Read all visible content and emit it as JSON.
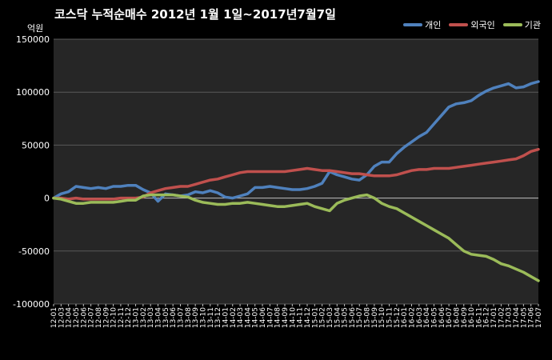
{
  "chart_data": {
    "type": "line",
    "title": "코스닥  누적순매수 2012년 1월 1일~2017년7월7일",
    "ylabel": "억원",
    "xlabel": "",
    "ylim": [
      -100000,
      150000
    ],
    "yticks": [
      150000,
      100000,
      50000,
      0,
      -50000,
      -100000
    ],
    "grid": true,
    "legend_position": "top-right",
    "categories": [
      "12-01",
      "12-03",
      "12-04",
      "12-05",
      "12-06",
      "12-07",
      "12-08",
      "12-09",
      "12-10",
      "12-11",
      "12-12",
      "13-01",
      "13-02",
      "13-03",
      "13-04",
      "13-05",
      "13-06",
      "13-07",
      "13-08",
      "13-09",
      "13-10",
      "13-11",
      "13-12",
      "14-01",
      "14-02",
      "14-03",
      "14-04",
      "14-05",
      "14-06",
      "14-07",
      "14-08",
      "14-09",
      "14-10",
      "14-11",
      "14-12",
      "15-01",
      "15-02",
      "15-03",
      "15-04",
      "15-05",
      "15-06",
      "15-07",
      "15-08",
      "15-09",
      "15-10",
      "15-11",
      "15-12",
      "16-01",
      "16-02",
      "16-03",
      "16-04",
      "16-05",
      "16-06",
      "16-07",
      "16-08",
      "16-09",
      "16-10",
      "16-11",
      "16-12",
      "17-01",
      "17-02",
      "17-03",
      "17-04",
      "17-05",
      "17-06",
      "17-07"
    ],
    "series": [
      {
        "name": "개인",
        "color": "#4f81bd",
        "values": [
          0,
          4000,
          6000,
          11000,
          10000,
          9000,
          10000,
          9000,
          11000,
          11000,
          12000,
          12000,
          8000,
          5000,
          -3000,
          4000,
          3000,
          2000,
          3000,
          6000,
          5000,
          7000,
          5000,
          1000,
          0,
          2000,
          4000,
          10000,
          10000,
          11000,
          10000,
          9000,
          8000,
          8000,
          9000,
          11000,
          14000,
          25000,
          22000,
          20000,
          18000,
          17000,
          22000,
          30000,
          34000,
          34000,
          42000,
          48000,
          53000,
          58000,
          62000,
          70000,
          78000,
          86000,
          89000,
          90000,
          92000,
          97000,
          101000,
          104000,
          106000,
          108000,
          104000,
          105000,
          108000,
          110000
        ]
      },
      {
        "name": "외국인",
        "color": "#c0504d",
        "values": [
          0,
          0,
          -1000,
          0,
          -1000,
          -1000,
          -1000,
          -1000,
          -1000,
          0,
          0,
          0,
          1000,
          5000,
          7000,
          9000,
          10000,
          11000,
          11000,
          13000,
          15000,
          17000,
          18000,
          20000,
          22000,
          24000,
          25000,
          25000,
          25000,
          25000,
          25000,
          25000,
          26000,
          27000,
          28000,
          27000,
          26000,
          26000,
          25000,
          24000,
          23000,
          23000,
          22000,
          21000,
          21000,
          21000,
          22000,
          24000,
          26000,
          27000,
          27000,
          28000,
          28000,
          28000,
          29000,
          30000,
          31000,
          32000,
          33000,
          34000,
          35000,
          36000,
          37000,
          40000,
          44000,
          46000
        ]
      },
      {
        "name": "기관",
        "color": "#9bbb59",
        "values": [
          0,
          -1000,
          -3000,
          -5000,
          -5000,
          -4000,
          -4000,
          -4000,
          -4000,
          -3000,
          -2000,
          -2000,
          2000,
          3000,
          3000,
          3000,
          3000,
          2000,
          1000,
          -2000,
          -4000,
          -5000,
          -6000,
          -6000,
          -5000,
          -5000,
          -4000,
          -5000,
          -6000,
          -7000,
          -8000,
          -8000,
          -7000,
          -6000,
          -5000,
          -8000,
          -10000,
          -12000,
          -5000,
          -2000,
          0,
          2000,
          3000,
          0,
          -5000,
          -8000,
          -10000,
          -14000,
          -18000,
          -22000,
          -26000,
          -30000,
          -34000,
          -38000,
          -44000,
          -50000,
          -53000,
          -54000,
          -55000,
          -58000,
          -62000,
          -64000,
          -67000,
          -70000,
          -74000,
          -78000
        ]
      }
    ]
  }
}
